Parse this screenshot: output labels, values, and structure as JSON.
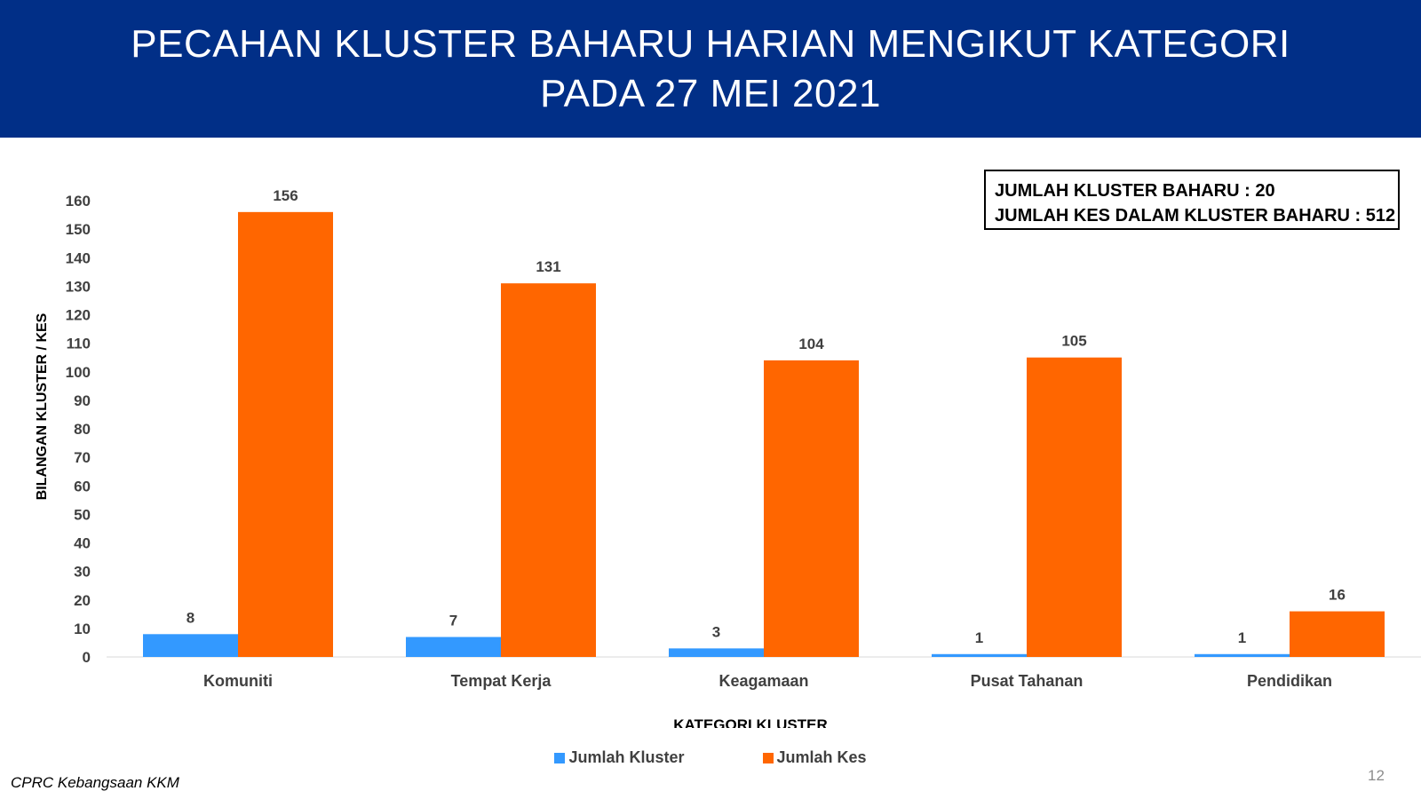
{
  "header": {
    "title_line1": "PECAHAN KLUSTER BAHARU HARIAN MENGIKUT KATEGORI",
    "title_line2": "PADA 27 MEI 2021"
  },
  "summary": {
    "line1": "JUMLAH KLUSTER BAHARU : 20",
    "line2": "JUMLAH KES DALAM KLUSTER BAHARU : 512"
  },
  "chart_data": {
    "type": "bar",
    "categories": [
      "Komuniti",
      "Tempat Kerja",
      "Keagamaan",
      "Pusat Tahanan",
      "Pendidikan"
    ],
    "series": [
      {
        "name": "Jumlah Kluster",
        "values": [
          8,
          7,
          3,
          1,
          1
        ],
        "color": "#3399FF"
      },
      {
        "name": "Jumlah Kes",
        "values": [
          156,
          131,
          104,
          105,
          16
        ],
        "color": "#FF6600"
      }
    ],
    "xlabel": "KATEGORI KLUSTER",
    "ylabel": "BILANGAN KLUSTER / KES",
    "ylim": [
      0,
      160
    ],
    "yticks": [
      0,
      10,
      20,
      30,
      40,
      50,
      60,
      70,
      80,
      90,
      100,
      110,
      120,
      130,
      140,
      150,
      160
    ],
    "grid": false,
    "legend_position": "bottom"
  },
  "footer": {
    "source": "CPRC Kebangsaan KKM",
    "page_number": "12"
  }
}
